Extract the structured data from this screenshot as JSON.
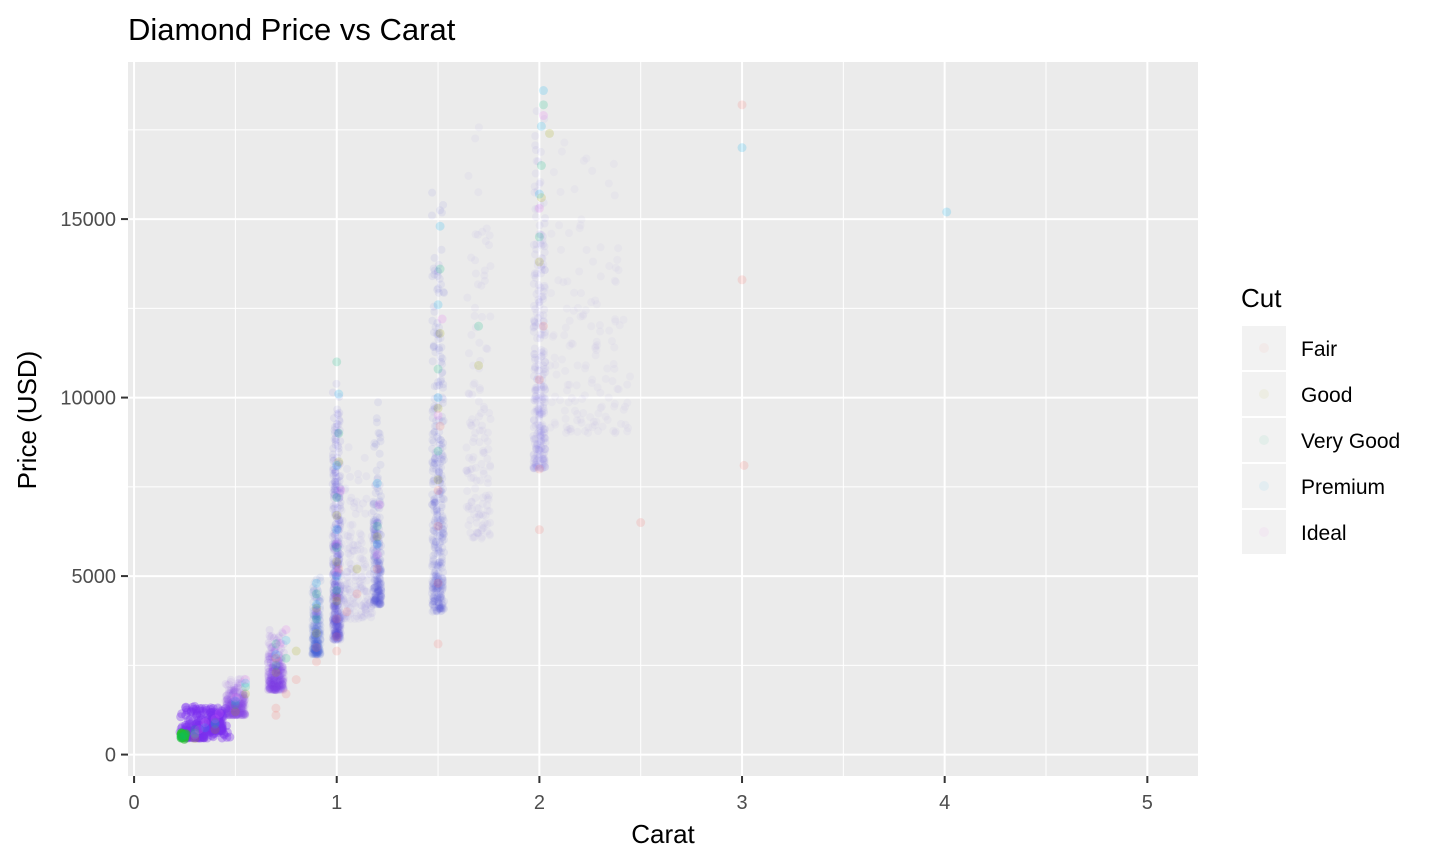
{
  "chart_data": {
    "type": "scatter",
    "title": "Diamond Price vs Carat",
    "xlabel": "Carat",
    "ylabel": "Price (USD)",
    "xlim": [
      -0.03,
      5.25
    ],
    "ylim": [
      -600,
      19400
    ],
    "x_ticks": [
      0,
      1,
      2,
      3,
      4,
      5
    ],
    "x_tick_labels": [
      "0",
      "1",
      "2",
      "3",
      "4",
      "5"
    ],
    "y_ticks": [
      0,
      5000,
      10000,
      15000
    ],
    "y_tick_labels": [
      "0",
      "5000",
      "10000",
      "15000"
    ],
    "grid": true,
    "legend": {
      "title": "Cut",
      "position": "right",
      "entries": [
        "Fair",
        "Good",
        "Very Good",
        "Premium",
        "Ideal"
      ]
    },
    "series": [
      {
        "name": "Fair",
        "color": "#f8766d",
        "points": [
          [
            0.7,
            1100
          ],
          [
            0.7,
            1300
          ],
          [
            0.75,
            1700
          ],
          [
            0.8,
            2100
          ],
          [
            0.9,
            2600
          ],
          [
            0.9,
            3000
          ],
          [
            1.0,
            2900
          ],
          [
            1.0,
            3300
          ],
          [
            1.0,
            3800
          ],
          [
            1.0,
            4400
          ],
          [
            1.01,
            5200
          ],
          [
            1.05,
            4000
          ],
          [
            1.1,
            4500
          ],
          [
            1.2,
            5200
          ],
          [
            1.5,
            3100
          ],
          [
            1.5,
            4800
          ],
          [
            1.5,
            6400
          ],
          [
            1.5,
            7400
          ],
          [
            1.51,
            9200
          ],
          [
            2.0,
            6300
          ],
          [
            2.0,
            8000
          ],
          [
            2.0,
            10500
          ],
          [
            2.02,
            12000
          ],
          [
            2.5,
            6500
          ],
          [
            3.0,
            18200
          ],
          [
            3.01,
            8100
          ],
          [
            3.0,
            13300
          ]
        ]
      },
      {
        "name": "Good",
        "color": "#a3a500",
        "points": [
          [
            0.3,
            450
          ],
          [
            0.3,
            600
          ],
          [
            0.4,
            700
          ],
          [
            0.5,
            1200
          ],
          [
            0.55,
            1700
          ],
          [
            0.7,
            2300
          ],
          [
            0.7,
            2700
          ],
          [
            0.8,
            2900
          ],
          [
            0.9,
            3400
          ],
          [
            0.9,
            4100
          ],
          [
            1.0,
            4300
          ],
          [
            1.0,
            5400
          ],
          [
            1.0,
            6700
          ],
          [
            1.01,
            8200
          ],
          [
            1.1,
            5200
          ],
          [
            1.2,
            6100
          ],
          [
            1.5,
            7700
          ],
          [
            1.5,
            9700
          ],
          [
            1.51,
            11800
          ],
          [
            1.7,
            10900
          ],
          [
            2.0,
            13800
          ],
          [
            2.01,
            15600
          ],
          [
            2.05,
            17400
          ]
        ]
      },
      {
        "name": "Very Good",
        "color": "#00bf7d",
        "points": [
          [
            0.23,
            480
          ],
          [
            0.24,
            520
          ],
          [
            0.25,
            550
          ],
          [
            0.3,
            560
          ],
          [
            0.3,
            700
          ],
          [
            0.4,
            900
          ],
          [
            0.5,
            1400
          ],
          [
            0.55,
            1900
          ],
          [
            0.7,
            2500
          ],
          [
            0.7,
            3100
          ],
          [
            0.75,
            2700
          ],
          [
            0.9,
            3800
          ],
          [
            0.9,
            4500
          ],
          [
            1.0,
            4600
          ],
          [
            1.0,
            5800
          ],
          [
            1.0,
            7200
          ],
          [
            1.01,
            9000
          ],
          [
            1.0,
            11000
          ],
          [
            1.2,
            6400
          ],
          [
            1.5,
            8500
          ],
          [
            1.5,
            10800
          ],
          [
            1.51,
            13600
          ],
          [
            1.7,
            12000
          ],
          [
            2.0,
            14500
          ],
          [
            2.01,
            16500
          ],
          [
            2.02,
            18200
          ]
        ]
      },
      {
        "name": "Premium",
        "color": "#00b0f6",
        "points": [
          [
            0.3,
            600
          ],
          [
            0.35,
            750
          ],
          [
            0.4,
            850
          ],
          [
            0.5,
            1500
          ],
          [
            0.55,
            2000
          ],
          [
            0.7,
            2800
          ],
          [
            0.75,
            3200
          ],
          [
            0.9,
            4200
          ],
          [
            0.9,
            4800
          ],
          [
            1.0,
            5000
          ],
          [
            1.0,
            6300
          ],
          [
            1.0,
            8100
          ],
          [
            1.01,
            10100
          ],
          [
            1.2,
            5900
          ],
          [
            1.2,
            7600
          ],
          [
            1.5,
            10000
          ],
          [
            1.5,
            12600
          ],
          [
            1.51,
            14800
          ],
          [
            2.0,
            15700
          ],
          [
            2.01,
            17600
          ],
          [
            2.02,
            18600
          ],
          [
            3.0,
            17000
          ],
          [
            4.01,
            15200
          ]
        ]
      },
      {
        "name": "Ideal",
        "color": "#e76bf3",
        "points": [
          [
            0.3,
            550
          ],
          [
            0.32,
            700
          ],
          [
            0.35,
            900
          ],
          [
            0.4,
            1000
          ],
          [
            0.42,
            1150
          ],
          [
            0.5,
            1600
          ],
          [
            0.55,
            2100
          ],
          [
            0.7,
            2700
          ],
          [
            0.72,
            3100
          ],
          [
            0.75,
            3500
          ],
          [
            0.9,
            4000
          ],
          [
            1.0,
            5100
          ],
          [
            1.0,
            5900
          ],
          [
            1.02,
            7400
          ],
          [
            1.2,
            5600
          ],
          [
            1.21,
            7000
          ],
          [
            1.5,
            9500
          ],
          [
            1.52,
            12200
          ],
          [
            2.0,
            15300
          ],
          [
            2.02,
            17900
          ]
        ]
      }
    ]
  }
}
